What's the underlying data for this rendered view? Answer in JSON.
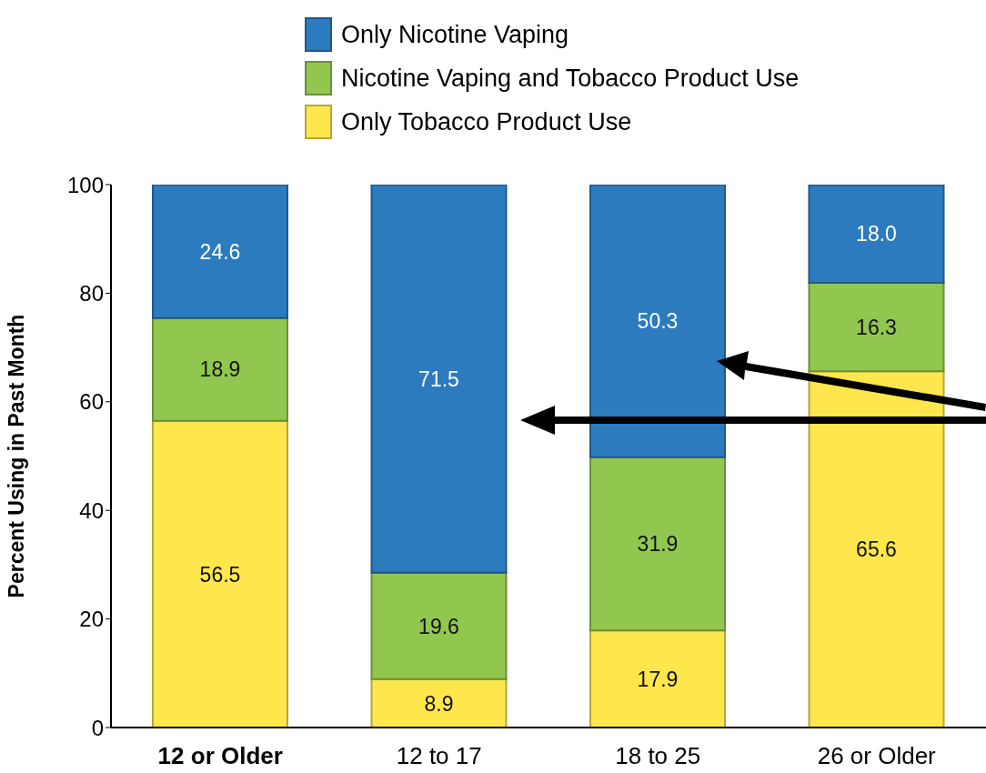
{
  "chart_data": {
    "type": "bar",
    "stacked": true,
    "ylabel": "Percent Using in Past Month",
    "categories": [
      "12 or Older",
      "12 to 17",
      "18 to 25",
      "26 or Older"
    ],
    "series": [
      {
        "name": "Only Tobacco Product Use",
        "color": "#fde74c",
        "values": [
          56.5,
          8.9,
          17.9,
          65.6
        ],
        "value_labels": [
          "56.5",
          "8.9",
          "17.9",
          "65.6"
        ]
      },
      {
        "name": "Nicotine Vaping and Tobacco Product Use",
        "color": "#92c74f",
        "values": [
          18.9,
          19.6,
          31.9,
          16.3
        ],
        "value_labels": [
          "18.9",
          "19.6",
          "31.9",
          "16.3"
        ]
      },
      {
        "name": "Only Nicotine Vaping",
        "color": "#2b7bbe",
        "values": [
          24.6,
          71.5,
          50.3,
          18.0
        ],
        "value_labels": [
          "24.6",
          "71.5",
          "50.3",
          "18.0"
        ]
      }
    ],
    "ylim": [
      0,
      100
    ],
    "yticks": [
      0,
      20,
      40,
      60,
      80,
      100
    ],
    "grid": false,
    "legend": "top"
  }
}
